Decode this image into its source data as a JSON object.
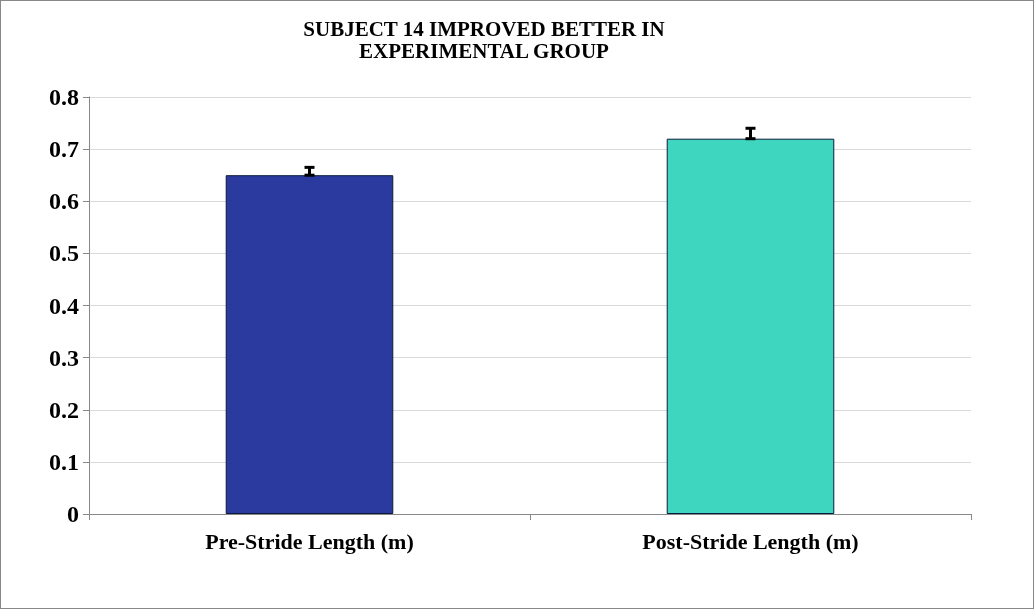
{
  "chart_data": {
    "type": "bar",
    "title": "SUBJECT 14 IMPROVED BETTER IN\nEXPERIMENTAL GROUP",
    "categories": [
      "Pre-Stride Length (m)",
      "Post-Stride Length (m)"
    ],
    "values": [
      0.65,
      0.72
    ],
    "colors": [
      "#2b3a9e",
      "#3fd6c0"
    ],
    "errors": [
      [
        0.65,
        0.665
      ],
      [
        0.72,
        0.74
      ]
    ],
    "ylim": [
      0,
      0.8
    ],
    "yticks": [
      0,
      0.1,
      0.2,
      0.3,
      0.4,
      0.5,
      0.6,
      0.7,
      0.8
    ],
    "grid": "y"
  }
}
